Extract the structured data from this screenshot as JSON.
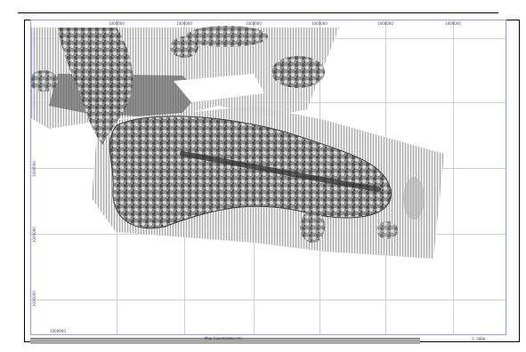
{
  "map": {
    "x_ticks": [
      "1000000",
      "1000000",
      "1000000",
      "1000000",
      "1000000",
      "1000000",
      "1000000"
    ],
    "y_ticks": [
      "1000000",
      "1000000",
      "1000000",
      "1000000",
      "1000000"
    ],
    "bottom_label": "Map Coordinates (m)",
    "scale_label": "1: 3000"
  },
  "colors": {
    "grid": "#c9cde8",
    "terrain_dark": "#3a3a3a",
    "terrain_mid": "#9a9a9a",
    "terrain_light": "#e2e2e2"
  }
}
